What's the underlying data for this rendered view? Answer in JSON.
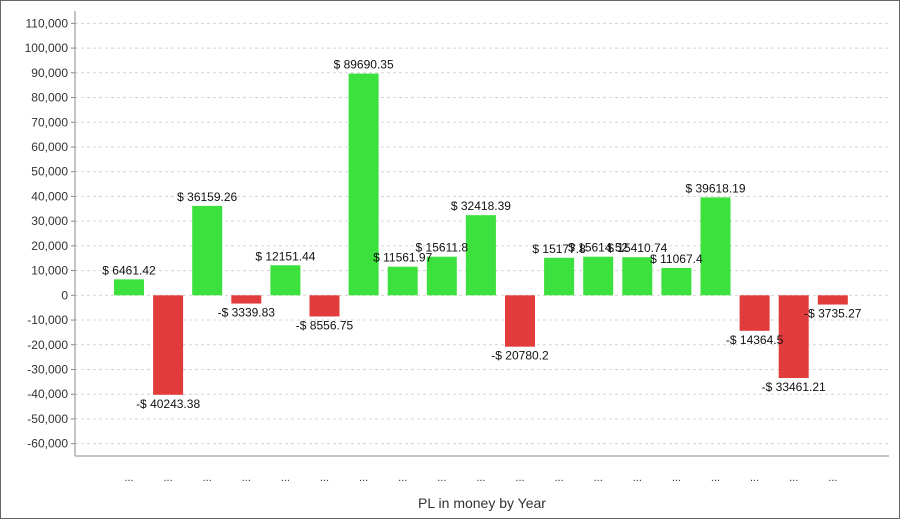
{
  "chart_data": {
    "type": "bar",
    "xlabel": "PL in money by Year",
    "ylabel": "",
    "ylim": [
      -65000,
      115000
    ],
    "yticks": [
      110000,
      100000,
      90000,
      80000,
      70000,
      60000,
      50000,
      40000,
      30000,
      20000,
      10000,
      0,
      -10000,
      -20000,
      -30000,
      -40000,
      -50000,
      -60000
    ],
    "ytick_labels": [
      "110,000",
      "100,000",
      "90,000",
      "80,000",
      "70,000",
      "60,000",
      "50,000",
      "40,000",
      "30,000",
      "20,000",
      "10,000",
      "0",
      "-10,000",
      "-20,000",
      "-30,000",
      "-40,000",
      "-50,000",
      "-60,000"
    ],
    "grid": "horizontal dashed",
    "categories": [
      "...",
      "...",
      "...",
      "...",
      "...",
      "...",
      "...",
      "...",
      "...",
      "...",
      "...",
      "...",
      "...",
      "...",
      "...",
      "...",
      "...",
      "...",
      "..."
    ],
    "values": [
      6461.42,
      -40243.38,
      36159.26,
      -3339.83,
      12151.44,
      -8556.75,
      89690.35,
      11561.97,
      15611.8,
      32418.39,
      -20780.2,
      15177.8,
      15614.52,
      15410.74,
      11067.4,
      39618.19,
      -14364.5,
      -33461.21,
      -3735.27
    ],
    "data_labels": [
      "$ 6461.42",
      "-$ 40243.38",
      "$ 36159.26",
      "-$ 3339.83",
      "$ 12151.44",
      "-$ 8556.75",
      "$ 89690.35",
      "$ 11561.97",
      "$ 15611.8",
      "$ 32418.39",
      "-$ 20780.2",
      "$ 15177.8",
      "$ 15614.52",
      "$ 15410.74",
      "$ 11067.4",
      "$ 39618.19",
      "-$ 14364.5",
      "-$ 33461.21",
      "-$ 3735.27"
    ],
    "colors": {
      "positive": "#3de13d",
      "negative": "#e23b3b",
      "grid": "#d4d4d4",
      "axis": "#888888"
    }
  }
}
